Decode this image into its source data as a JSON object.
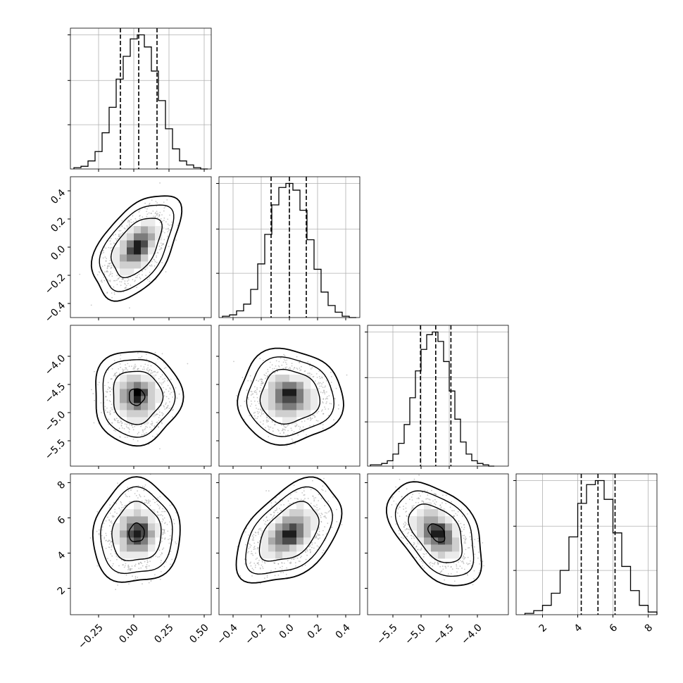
{
  "chart_data": {
    "type": "corner",
    "title": "",
    "grid": true,
    "n_params": 4,
    "params": [
      {
        "xlim": [
          -0.45,
          0.55
        ],
        "ticks": [
          -0.25,
          0.0,
          0.25,
          0.5
        ],
        "tick_labels": [
          "−0.25",
          "0.00",
          "0.25",
          "0.50"
        ],
        "quantiles": [
          -0.095,
          0.035,
          0.165
        ],
        "hist_x": [
          -0.4,
          -0.35,
          -0.3,
          -0.25,
          -0.2,
          -0.15,
          -0.1,
          -0.05,
          0.0,
          0.05,
          0.1,
          0.15,
          0.2,
          0.25,
          0.3,
          0.35,
          0.4,
          0.45,
          0.5
        ],
        "hist": [
          0.01,
          0.02,
          0.06,
          0.13,
          0.27,
          0.46,
          0.67,
          0.84,
          0.97,
          1.0,
          0.91,
          0.73,
          0.51,
          0.3,
          0.15,
          0.06,
          0.03,
          0.01,
          0.0
        ]
      },
      {
        "xlim": [
          -0.5,
          0.5
        ],
        "ticks": [
          -0.4,
          -0.2,
          0.0,
          0.2,
          0.4
        ],
        "tick_labels": [
          "−0.4",
          "−0.2",
          "0.0",
          "0.2",
          "0.4"
        ],
        "quantiles": [
          -0.13,
          0.0,
          0.12
        ],
        "hist_x": [
          -0.45,
          -0.4,
          -0.35,
          -0.3,
          -0.25,
          -0.2,
          -0.15,
          -0.1,
          -0.05,
          0.0,
          0.05,
          0.1,
          0.15,
          0.2,
          0.25,
          0.3,
          0.35,
          0.4,
          0.45
        ],
        "hist": [
          0.01,
          0.02,
          0.05,
          0.1,
          0.21,
          0.4,
          0.62,
          0.84,
          0.97,
          1.0,
          0.95,
          0.8,
          0.58,
          0.36,
          0.19,
          0.09,
          0.04,
          0.01,
          0.0
        ]
      },
      {
        "xlim": [
          -5.95,
          -3.45
        ],
        "ticks": [
          -5.5,
          -5.0,
          -4.5,
          -4.0
        ],
        "tick_labels": [
          "−5.5",
          "−5.0",
          "−4.5",
          "−4.0"
        ],
        "quantiles": [
          -5.01,
          -4.74,
          -4.47
        ],
        "hist_x": [
          -5.85,
          -5.75,
          -5.65,
          -5.55,
          -5.45,
          -5.35,
          -5.25,
          -5.15,
          -5.05,
          -4.95,
          -4.85,
          -4.75,
          -4.65,
          -4.55,
          -4.45,
          -4.35,
          -4.25,
          -4.15,
          -4.05,
          -3.95,
          -3.85,
          -3.75
        ],
        "hist": [
          0.01,
          0.01,
          0.02,
          0.04,
          0.09,
          0.17,
          0.31,
          0.51,
          0.71,
          0.87,
          0.98,
          1.0,
          0.93,
          0.78,
          0.56,
          0.35,
          0.18,
          0.09,
          0.04,
          0.02,
          0.01,
          0.0
        ]
      },
      {
        "xlim": [
          0.5,
          8.5
        ],
        "ticks": [
          2,
          4,
          6,
          8
        ],
        "tick_labels": [
          "2",
          "4",
          "6",
          "8"
        ],
        "quantiles": [
          4.2,
          5.15,
          6.12
        ],
        "hist_x": [
          1.25,
          1.75,
          2.25,
          2.75,
          3.25,
          3.75,
          4.25,
          4.75,
          5.25,
          5.75,
          6.25,
          6.75,
          7.25,
          7.75,
          8.25
        ],
        "hist": [
          0.01,
          0.03,
          0.07,
          0.16,
          0.33,
          0.58,
          0.83,
          0.97,
          1.0,
          0.86,
          0.61,
          0.36,
          0.18,
          0.07,
          0.02
        ]
      }
    ],
    "panels_2d": [
      {
        "row": 1,
        "col": 0,
        "center": [
          0.02,
          0.0
        ],
        "sigma": [
          0.1,
          0.12
        ],
        "rho": 0.5,
        "core": [
          0.05,
          0.01
        ]
      },
      {
        "row": 2,
        "col": 0,
        "center": [
          0.02,
          -4.72
        ],
        "sigma": [
          0.1,
          0.27
        ],
        "rho": 0.0,
        "core": [
          0.03,
          -4.65
        ]
      },
      {
        "row": 2,
        "col": 1,
        "center": [
          0.0,
          -4.72
        ],
        "sigma": [
          0.12,
          0.27
        ],
        "rho": 0.0,
        "core": [
          -0.01,
          -4.62
        ]
      },
      {
        "row": 3,
        "col": 0,
        "center": [
          0.02,
          5.15
        ],
        "sigma": [
          0.1,
          0.95
        ],
        "rho": 0.05,
        "core": [
          0.04,
          5.2
        ]
      },
      {
        "row": 3,
        "col": 1,
        "center": [
          0.0,
          5.15
        ],
        "sigma": [
          0.12,
          0.95
        ],
        "rho": 0.45,
        "core": [
          0.0,
          5.0
        ]
      },
      {
        "row": 3,
        "col": 2,
        "center": [
          -4.72,
          5.15
        ],
        "sigma": [
          0.27,
          0.95
        ],
        "rho": -0.45,
        "core": [
          -4.65,
          5.1
        ]
      }
    ]
  }
}
